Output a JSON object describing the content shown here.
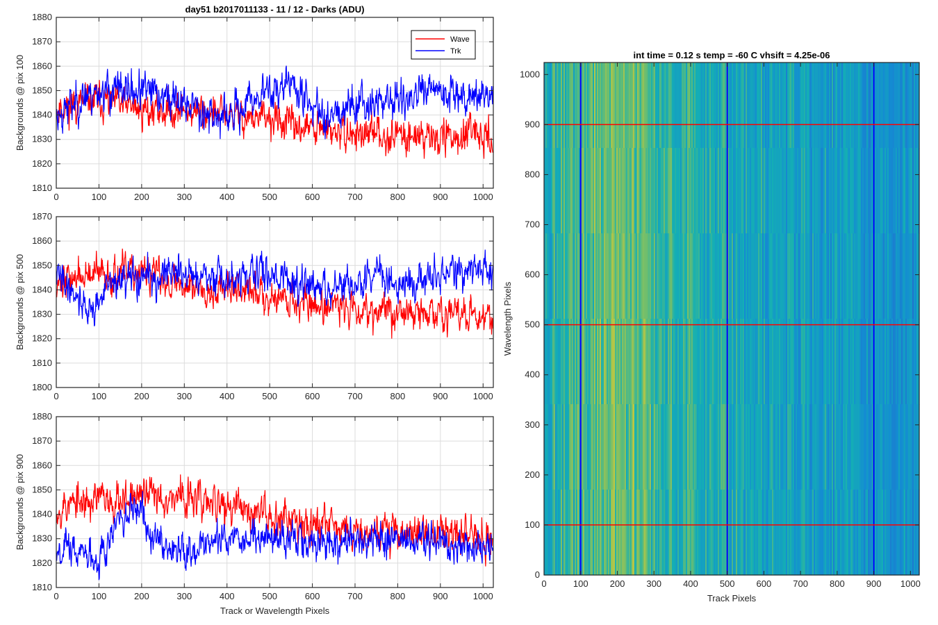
{
  "figure_title": "day51 b2017011133 - 11 / 12 - Darks (ADU)",
  "colors": {
    "wave": "#ff0000",
    "trk": "#0000ff",
    "grid": "#dcdcdc",
    "axis": "#262626"
  },
  "chart_data": [
    {
      "type": "line",
      "title": "day51 b2017011133 - 11 / 12 - Darks (ADU)",
      "xlabel": "",
      "ylabel": "Backgrounds @ pix 100",
      "xlim": [
        0,
        1024
      ],
      "ylim": [
        1810,
        1880
      ],
      "xticks": [
        0,
        100,
        200,
        300,
        400,
        500,
        600,
        700,
        800,
        900,
        1000
      ],
      "yticks": [
        1810,
        1820,
        1830,
        1840,
        1850,
        1860,
        1870,
        1880
      ],
      "legend": {
        "position": "top-right",
        "entries": [
          "Wave",
          "Trk"
        ]
      },
      "series": [
        {
          "name": "Wave",
          "color": "#ff0000",
          "n": 1024,
          "seed": 11,
          "noise": 6,
          "trend": [
            [
              0,
              1843
            ],
            [
              100,
              1846
            ],
            [
              200,
              1842
            ],
            [
              300,
              1842
            ],
            [
              400,
              1840
            ],
            [
              500,
              1838
            ],
            [
              600,
              1834
            ],
            [
              700,
              1832
            ],
            [
              800,
              1832
            ],
            [
              900,
              1831
            ],
            [
              1023,
              1831
            ]
          ]
        },
        {
          "name": "Trk",
          "color": "#0000ff",
          "n": 1024,
          "seed": 23,
          "noise": 6.5,
          "trend": [
            [
              0,
              1840
            ],
            [
              60,
              1847
            ],
            [
              100,
              1850
            ],
            [
              200,
              1850
            ],
            [
              300,
              1845
            ],
            [
              400,
              1838
            ],
            [
              470,
              1848
            ],
            [
              550,
              1853
            ],
            [
              620,
              1840
            ],
            [
              700,
              1845
            ],
            [
              800,
              1846
            ],
            [
              900,
              1850
            ],
            [
              1023,
              1848
            ]
          ]
        }
      ]
    },
    {
      "type": "line",
      "title": "",
      "xlabel": "",
      "ylabel": "Backgrounds @ pix 500",
      "xlim": [
        0,
        1024
      ],
      "ylim": [
        1800,
        1870
      ],
      "xticks": [
        0,
        100,
        200,
        300,
        400,
        500,
        600,
        700,
        800,
        900,
        1000
      ],
      "yticks": [
        1800,
        1810,
        1820,
        1830,
        1840,
        1850,
        1860,
        1870
      ],
      "series": [
        {
          "name": "Wave",
          "color": "#ff0000",
          "n": 1024,
          "seed": 37,
          "noise": 6,
          "trend": [
            [
              0,
              1844
            ],
            [
              100,
              1846
            ],
            [
              200,
              1847
            ],
            [
              300,
              1842
            ],
            [
              400,
              1840
            ],
            [
              500,
              1838
            ],
            [
              600,
              1834
            ],
            [
              700,
              1833
            ],
            [
              800,
              1831
            ],
            [
              900,
              1830
            ],
            [
              1023,
              1830
            ]
          ]
        },
        {
          "name": "Trk",
          "color": "#0000ff",
          "n": 1024,
          "seed": 41,
          "noise": 6,
          "trend": [
            [
              0,
              1846
            ],
            [
              50,
              1838
            ],
            [
              80,
              1830
            ],
            [
              120,
              1842
            ],
            [
              200,
              1845
            ],
            [
              300,
              1847
            ],
            [
              400,
              1843
            ],
            [
              500,
              1848
            ],
            [
              600,
              1840
            ],
            [
              700,
              1841
            ],
            [
              760,
              1848
            ],
            [
              800,
              1842
            ],
            [
              900,
              1846
            ],
            [
              1023,
              1849
            ]
          ]
        }
      ]
    },
    {
      "type": "line",
      "title": "",
      "xlabel": "Track or Wavelength Pixels",
      "ylabel": "Backgrounds @ pix 900",
      "xlim": [
        0,
        1024
      ],
      "ylim": [
        1810,
        1880
      ],
      "xticks": [
        0,
        100,
        200,
        300,
        400,
        500,
        600,
        700,
        800,
        900,
        1000
      ],
      "xticklabels": [
        "0",
        "100",
        "200",
        "300",
        "400",
        "500",
        "600",
        "700",
        "800",
        "900",
        "1000"
      ],
      "yticks": [
        1810,
        1820,
        1830,
        1840,
        1850,
        1860,
        1870,
        1880
      ],
      "series": [
        {
          "name": "Wave",
          "color": "#ff0000",
          "n": 1024,
          "seed": 53,
          "noise": 6.5,
          "trend": [
            [
              0,
              1843
            ],
            [
              100,
              1846
            ],
            [
              200,
              1848
            ],
            [
              300,
              1847
            ],
            [
              400,
              1843
            ],
            [
              500,
              1840
            ],
            [
              600,
              1837
            ],
            [
              700,
              1834
            ],
            [
              800,
              1833
            ],
            [
              900,
              1832
            ],
            [
              1023,
              1831
            ]
          ]
        },
        {
          "name": "Trk",
          "color": "#0000ff",
          "n": 1024,
          "seed": 67,
          "noise": 6,
          "trend": [
            [
              0,
              1828
            ],
            [
              50,
              1824
            ],
            [
              100,
              1823
            ],
            [
              150,
              1838
            ],
            [
              200,
              1840
            ],
            [
              250,
              1828
            ],
            [
              300,
              1826
            ],
            [
              400,
              1830
            ],
            [
              500,
              1831
            ],
            [
              600,
              1828
            ],
            [
              700,
              1829
            ],
            [
              800,
              1830
            ],
            [
              900,
              1828
            ],
            [
              1023,
              1827
            ]
          ]
        }
      ]
    },
    {
      "type": "heatmap",
      "title": "int time = 0.12 s    temp = -60 C    vhsift = 4.25e-06",
      "xlabel": "Track Pixels",
      "ylabel": "Wavelength Pixels",
      "xlim": [
        0,
        1024
      ],
      "ylim": [
        0,
        1024
      ],
      "xticks": [
        0,
        100,
        200,
        300,
        400,
        500,
        600,
        700,
        800,
        900,
        1000
      ],
      "yticks": [
        0,
        100,
        200,
        300,
        400,
        500,
        600,
        700,
        800,
        900,
        1000
      ],
      "colormap": "parula",
      "overlays": {
        "vertical_lines": {
          "x": [
            100,
            500,
            900
          ],
          "color": "#0000ff"
        },
        "horizontal_lines": {
          "y": [
            100,
            500,
            900
          ],
          "color": "#ff0000"
        }
      }
    }
  ]
}
